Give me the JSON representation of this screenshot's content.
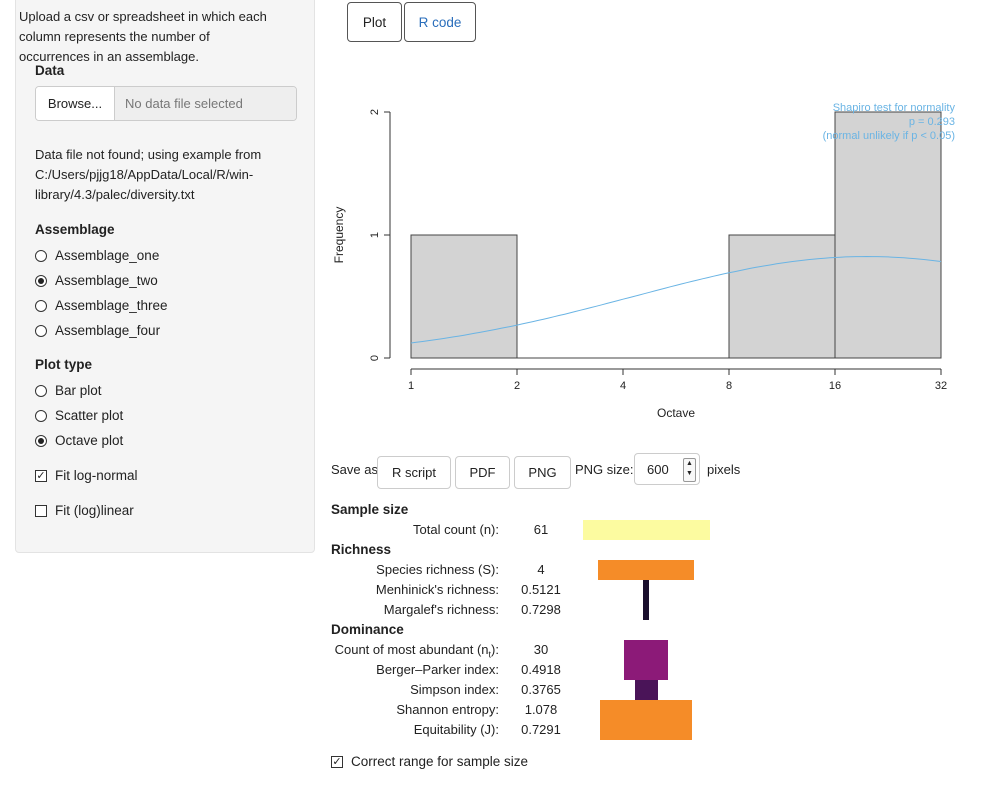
{
  "sidebar": {
    "intro": "Upload a csv or spreadsheet in which each column represents the number of occurrences in an assemblage.",
    "data_label": "Data",
    "browse_label": "Browse...",
    "file_placeholder": "No data file selected",
    "note": "Data file not found; using example from C:/Users/pjjg18/AppData/Local/R/win-library/4.3/palec/diversity.txt",
    "assemblage_label": "Assemblage",
    "assemblages": [
      {
        "label": "Assemblage_one",
        "selected": false
      },
      {
        "label": "Assemblage_two",
        "selected": true
      },
      {
        "label": "Assemblage_three",
        "selected": false
      },
      {
        "label": "Assemblage_four",
        "selected": false
      }
    ],
    "plot_type_label": "Plot type",
    "plot_types": [
      {
        "label": "Bar plot",
        "selected": false
      },
      {
        "label": "Scatter plot",
        "selected": false
      },
      {
        "label": "Octave plot",
        "selected": true
      }
    ],
    "fit_lognormal": {
      "label": "Fit log-normal",
      "checked": true
    },
    "fit_linear": {
      "label": "Fit (log)linear",
      "checked": false
    }
  },
  "tabs": {
    "plot": "Plot",
    "rcode": "R code"
  },
  "chart_data": {
    "type": "bar",
    "categories": [
      "1-2",
      "2-4",
      "4-8",
      "8-16",
      "16-32"
    ],
    "values": [
      1,
      0,
      0,
      1,
      2
    ],
    "x_ticks": [
      "1",
      "2",
      "4",
      "8",
      "16",
      "32"
    ],
    "y_ticks": [
      "0",
      "1",
      "2"
    ],
    "xlabel": "Octave",
    "ylabel": "Frequency",
    "ylim": [
      0,
      2
    ],
    "fit_curve": "log-normal",
    "annotation": [
      "Shapiro test for normality",
      "p = 0.293",
      "(normal unlikely if p < 0.05)"
    ],
    "bar_color": "#d3d3d3",
    "curve_color": "#6ab4e4"
  },
  "save": {
    "label": "Save as:",
    "r_script": "R script",
    "pdf": "PDF",
    "png": "PNG",
    "png_size_label": "PNG size:",
    "png_size_value": "600",
    "pixels_label": "pixels"
  },
  "stats": {
    "sample_size_header": "Sample size",
    "total_count_label": "Total count (n):",
    "total_count": "61",
    "richness_header": "Richness",
    "species_richness_label": "Species richness (S):",
    "species_richness": "4",
    "menhinick_label": "Menhinick's richness:",
    "menhinick": "0.5121",
    "margalef_label": "Margalef's richness:",
    "margalef": "0.7298",
    "dominance_header": "Dominance",
    "most_abundant_label": "Count of most abundant (n",
    "most_abundant_sub": "t",
    "most_abundant_suffix": "):",
    "most_abundant": "30",
    "berger_label": "Berger–Parker index:",
    "berger": "0.4918",
    "simpson_label": "Simpson index:",
    "simpson": "0.3765",
    "shannon_label": "Shannon entropy:",
    "shannon": "1.078",
    "equitability_label": "Equitability (J):",
    "equitability": "0.7291"
  },
  "correct_range": {
    "label": "Correct range for sample size",
    "checked": true
  },
  "colors": {
    "total_bar": "#fcfba0",
    "species_bar": "#f58c28",
    "menhinick_bar": "#1a0f2e",
    "most_abundant_bar": "#8c1a78",
    "berger_bar": "#8c1a78",
    "simpson_bar": "#4a1458",
    "shannon_bar": "#f58c28",
    "equitability_bar": "#f58c28"
  }
}
